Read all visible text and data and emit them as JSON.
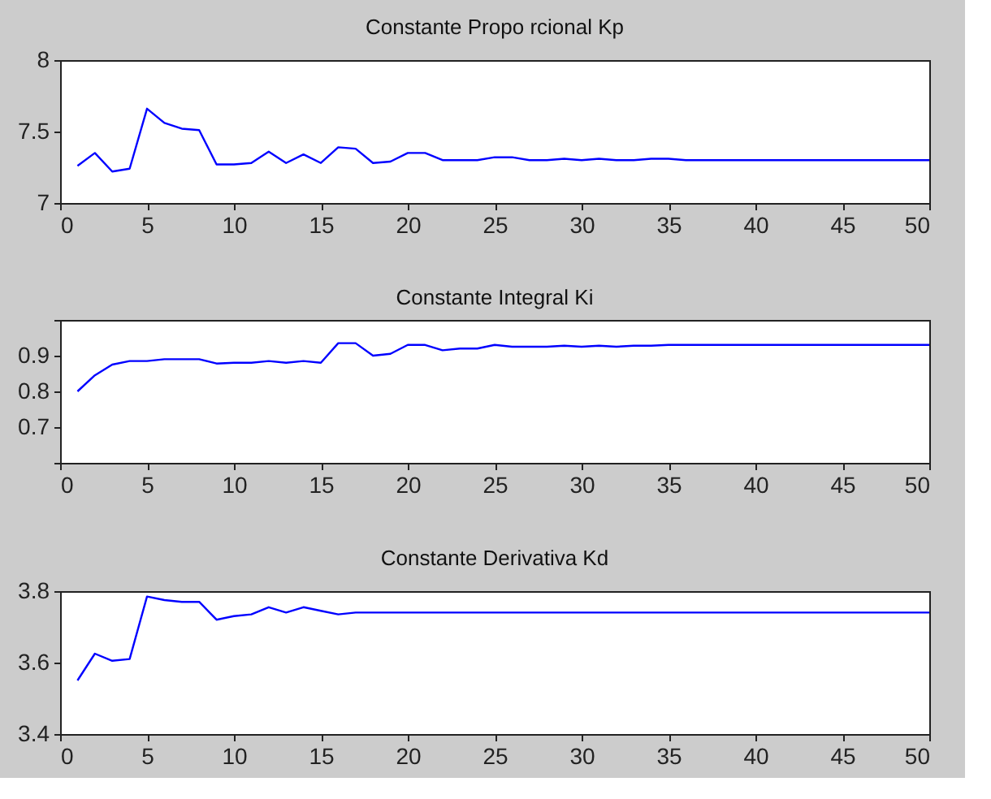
{
  "chart_data": [
    {
      "type": "line",
      "title": "Constante Propo rcional Kp",
      "x": [
        1,
        2,
        3,
        4,
        5,
        6,
        7,
        8,
        9,
        10,
        11,
        12,
        13,
        14,
        15,
        16,
        17,
        18,
        19,
        20,
        21,
        22,
        23,
        24,
        25,
        26,
        27,
        28,
        29,
        30,
        31,
        32,
        33,
        34,
        35,
        36,
        37,
        38,
        39,
        40,
        41,
        42,
        43,
        44,
        45,
        46,
        47,
        48,
        49,
        50
      ],
      "series": [
        {
          "color": "#0000ff",
          "values": [
            7.26,
            7.35,
            7.22,
            7.24,
            7.66,
            7.56,
            7.52,
            7.51,
            7.27,
            7.27,
            7.28,
            7.36,
            7.28,
            7.34,
            7.28,
            7.39,
            7.38,
            7.28,
            7.29,
            7.35,
            7.35,
            7.3,
            7.3,
            7.3,
            7.32,
            7.32,
            7.3,
            7.3,
            7.31,
            7.3,
            7.31,
            7.3,
            7.3,
            7.31,
            7.31,
            7.3,
            7.3,
            7.3,
            7.3,
            7.3,
            7.3,
            7.3,
            7.3,
            7.3,
            7.3,
            7.3,
            7.3,
            7.3,
            7.3,
            7.3
          ]
        }
      ],
      "xlim": [
        0,
        50
      ],
      "xticks": [
        0,
        5,
        10,
        15,
        20,
        25,
        30,
        35,
        40,
        45,
        50
      ],
      "ylim": [
        7,
        8
      ],
      "yticks": [
        7,
        7.5,
        8
      ],
      "grid": false
    },
    {
      "type": "line",
      "title": "Constante Integral Ki",
      "x": [
        1,
        2,
        3,
        4,
        5,
        6,
        7,
        8,
        9,
        10,
        11,
        12,
        13,
        14,
        15,
        16,
        17,
        18,
        19,
        20,
        21,
        22,
        23,
        24,
        25,
        26,
        27,
        28,
        29,
        30,
        31,
        32,
        33,
        34,
        35,
        36,
        37,
        38,
        39,
        40,
        41,
        42,
        43,
        44,
        45,
        46,
        47,
        48,
        49,
        50
      ],
      "series": [
        {
          "color": "#0000ff",
          "values": [
            0.8,
            0.845,
            0.875,
            0.885,
            0.885,
            0.89,
            0.89,
            0.89,
            0.878,
            0.88,
            0.88,
            0.885,
            0.88,
            0.885,
            0.88,
            0.935,
            0.935,
            0.9,
            0.905,
            0.93,
            0.93,
            0.915,
            0.92,
            0.92,
            0.93,
            0.925,
            0.925,
            0.925,
            0.928,
            0.925,
            0.928,
            0.925,
            0.928,
            0.928,
            0.93,
            0.93,
            0.93,
            0.93,
            0.93,
            0.93,
            0.93,
            0.93,
            0.93,
            0.93,
            0.93,
            0.93,
            0.93,
            0.93,
            0.93,
            0.93
          ]
        }
      ],
      "xlim": [
        0,
        50
      ],
      "xticks": [
        0,
        5,
        10,
        15,
        20,
        25,
        30,
        35,
        40,
        45,
        50
      ],
      "ylim": [
        0.6,
        1.0
      ],
      "yticks": [
        {
          "value": 0.6,
          "label": null
        },
        0.7,
        0.8,
        0.9,
        {
          "value": 1.0,
          "label": null
        }
      ],
      "grid": false
    },
    {
      "type": "line",
      "title": "Constante Derivativa Kd",
      "x": [
        1,
        2,
        3,
        4,
        5,
        6,
        7,
        8,
        9,
        10,
        11,
        12,
        13,
        14,
        15,
        16,
        17,
        18,
        19,
        20,
        21,
        22,
        23,
        24,
        25,
        26,
        27,
        28,
        29,
        30,
        31,
        32,
        33,
        34,
        35,
        36,
        37,
        38,
        39,
        40,
        41,
        42,
        43,
        44,
        45,
        46,
        47,
        48,
        49,
        50
      ],
      "series": [
        {
          "color": "#0000ff",
          "values": [
            3.55,
            3.625,
            3.605,
            3.61,
            3.785,
            3.775,
            3.77,
            3.77,
            3.72,
            3.73,
            3.735,
            3.755,
            3.74,
            3.755,
            3.745,
            3.735,
            3.74,
            3.74,
            3.74,
            3.74,
            3.74,
            3.74,
            3.74,
            3.74,
            3.74,
            3.74,
            3.74,
            3.74,
            3.74,
            3.74,
            3.74,
            3.74,
            3.74,
            3.74,
            3.74,
            3.74,
            3.74,
            3.74,
            3.74,
            3.74,
            3.74,
            3.74,
            3.74,
            3.74,
            3.74,
            3.74,
            3.74,
            3.74,
            3.74,
            3.74
          ]
        }
      ],
      "xlim": [
        0,
        50
      ],
      "xticks": [
        0,
        5,
        10,
        15,
        20,
        25,
        30,
        35,
        40,
        45,
        50
      ],
      "ylim": [
        3.4,
        3.8
      ],
      "yticks": [
        3.4,
        3.6,
        3.8
      ],
      "grid": false
    }
  ]
}
